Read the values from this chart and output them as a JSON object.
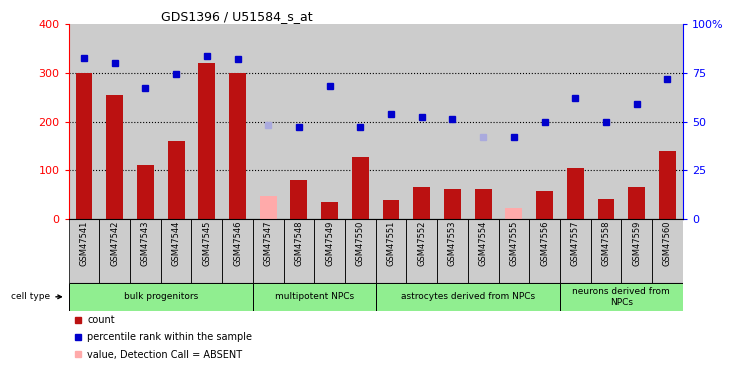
{
  "title": "GDS1396 / U51584_s_at",
  "samples": [
    "GSM47541",
    "GSM47542",
    "GSM47543",
    "GSM47544",
    "GSM47545",
    "GSM47546",
    "GSM47547",
    "GSM47548",
    "GSM47549",
    "GSM47550",
    "GSM47551",
    "GSM47552",
    "GSM47553",
    "GSM47554",
    "GSM47555",
    "GSM47556",
    "GSM47557",
    "GSM47558",
    "GSM47559",
    "GSM47560"
  ],
  "count_values": [
    300,
    255,
    110,
    160,
    320,
    300,
    null,
    80,
    35,
    128,
    40,
    65,
    62,
    62,
    null,
    58,
    105,
    42,
    65,
    140
  ],
  "count_absent": [
    false,
    false,
    false,
    false,
    false,
    false,
    true,
    false,
    false,
    false,
    false,
    false,
    false,
    false,
    true,
    false,
    false,
    false,
    false,
    false
  ],
  "absent_count_values": [
    null,
    null,
    null,
    null,
    null,
    null,
    48,
    null,
    null,
    null,
    null,
    null,
    null,
    null,
    22,
    null,
    null,
    null,
    null,
    null
  ],
  "rank_values": [
    330,
    320,
    268,
    298,
    335,
    328,
    null,
    188,
    272,
    188,
    215,
    210,
    205,
    null,
    168,
    200,
    248,
    200,
    235,
    288
  ],
  "rank_absent": [
    false,
    false,
    false,
    false,
    false,
    false,
    true,
    false,
    false,
    false,
    false,
    false,
    false,
    true,
    false,
    false,
    false,
    false,
    false,
    false
  ],
  "absent_rank_values": [
    null,
    null,
    null,
    null,
    null,
    null,
    192,
    null,
    null,
    null,
    null,
    null,
    null,
    168,
    null,
    null,
    null,
    null,
    null,
    null
  ],
  "cell_groups": [
    {
      "label": "bulk progenitors",
      "start": 0,
      "end": 5
    },
    {
      "label": "multipotent NPCs",
      "start": 6,
      "end": 9
    },
    {
      "label": "astrocytes derived from NPCs",
      "start": 10,
      "end": 15
    },
    {
      "label": "neurons derived from\nNPCs",
      "start": 16,
      "end": 19
    }
  ],
  "left_ylim": [
    0,
    400
  ],
  "right_ylim": [
    0,
    100
  ],
  "left_yticks": [
    0,
    100,
    200,
    300,
    400
  ],
  "right_yticks": [
    0,
    25,
    50,
    75,
    100
  ],
  "right_yticklabels": [
    "0",
    "25",
    "50",
    "75",
    "100%"
  ],
  "bar_color": "#BB1111",
  "absent_bar_color": "#FFAAAA",
  "rank_color": "#0000CC",
  "absent_rank_color": "#AAAADD",
  "legend_items": [
    {
      "color": "#BB1111",
      "label": "count",
      "marker": "s"
    },
    {
      "color": "#0000CC",
      "label": "percentile rank within the sample",
      "marker": "s"
    },
    {
      "color": "#FFAAAA",
      "label": "value, Detection Call = ABSENT",
      "marker": "s"
    },
    {
      "color": "#AAAADD",
      "label": "rank, Detection Call = ABSENT",
      "marker": "s"
    }
  ]
}
